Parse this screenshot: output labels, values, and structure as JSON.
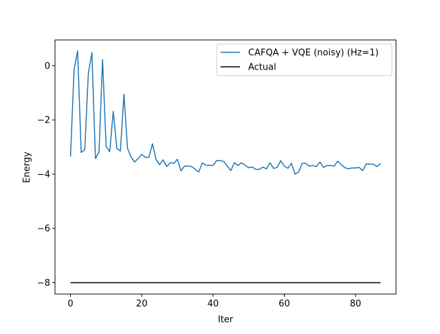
{
  "chart_data": {
    "type": "line",
    "title": "",
    "xlabel": "Iter",
    "ylabel": "Energy",
    "xlim": [
      -4.35,
      91.35
    ],
    "ylim": [
      -8.42,
      0.95
    ],
    "xticks": [
      0,
      20,
      40,
      60,
      80
    ],
    "xtick_labels": [
      "0",
      "20",
      "40",
      "60",
      "80"
    ],
    "yticks": [
      0,
      -2,
      -4,
      -6,
      -8
    ],
    "ytick_labels": [
      "0",
      "−2",
      "−4",
      "−6",
      "−8"
    ],
    "grid": false,
    "legend_position": "top-right",
    "series": [
      {
        "name": "CAFQA + VQE (noisy) (Hz=1)",
        "color": "#1f77b4",
        "x": [
          0,
          1,
          2,
          3,
          4,
          5,
          6,
          7,
          8,
          9,
          10,
          11,
          12,
          13,
          14,
          15,
          16,
          17,
          18,
          19,
          20,
          21,
          22,
          23,
          24,
          25,
          26,
          27,
          28,
          29,
          30,
          31,
          32,
          33,
          34,
          35,
          36,
          37,
          38,
          39,
          40,
          41,
          42,
          43,
          44,
          45,
          46,
          47,
          48,
          49,
          50,
          51,
          52,
          53,
          54,
          55,
          56,
          57,
          58,
          59,
          60,
          61,
          62,
          63,
          64,
          65,
          66,
          67,
          68,
          69,
          70,
          71,
          72,
          73,
          74,
          75,
          76,
          77,
          78,
          79,
          80,
          81,
          82,
          83,
          84,
          85,
          86,
          87
        ],
        "y": [
          -3.35,
          -0.15,
          0.55,
          -3.2,
          -3.1,
          -0.3,
          0.48,
          -3.42,
          -3.18,
          0.22,
          -2.98,
          -3.17,
          -1.68,
          -3.05,
          -3.15,
          -1.05,
          -3.05,
          -3.37,
          -3.55,
          -3.42,
          -3.27,
          -3.38,
          -3.38,
          -2.88,
          -3.45,
          -3.65,
          -3.47,
          -3.72,
          -3.58,
          -3.6,
          -3.45,
          -3.88,
          -3.7,
          -3.7,
          -3.72,
          -3.82,
          -3.92,
          -3.58,
          -3.67,
          -3.67,
          -3.68,
          -3.5,
          -3.5,
          -3.53,
          -3.7,
          -3.87,
          -3.57,
          -3.68,
          -3.58,
          -3.67,
          -3.76,
          -3.74,
          -3.82,
          -3.82,
          -3.74,
          -3.8,
          -3.58,
          -3.79,
          -3.75,
          -3.5,
          -3.7,
          -3.78,
          -3.6,
          -4.0,
          -3.92,
          -3.6,
          -3.6,
          -3.7,
          -3.68,
          -3.72,
          -3.55,
          -3.75,
          -3.68,
          -3.68,
          -3.7,
          -3.52,
          -3.65,
          -3.76,
          -3.8,
          -3.77,
          -3.77,
          -3.75,
          -3.87,
          -3.62,
          -3.63,
          -3.63,
          -3.72,
          -3.6
        ]
      },
      {
        "name": "Actual",
        "color": "#000000",
        "x": [
          0,
          87
        ],
        "y": [
          -8.0,
          -8.0
        ]
      }
    ]
  }
}
